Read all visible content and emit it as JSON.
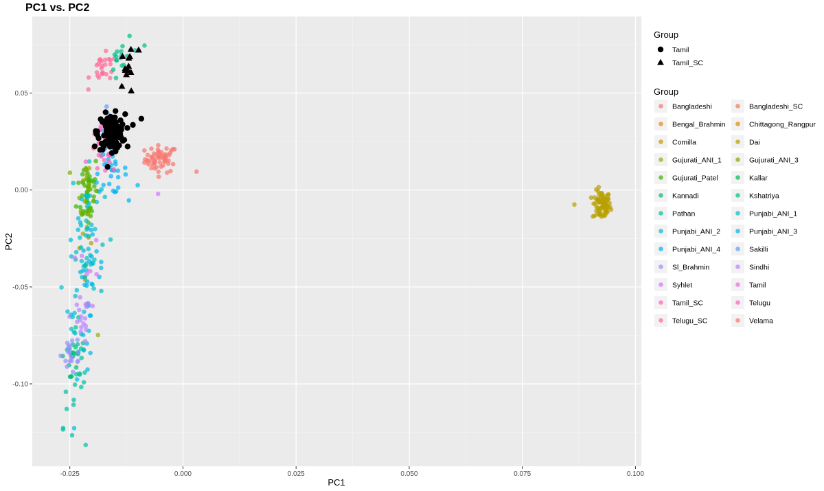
{
  "chart_data": {
    "type": "scatter",
    "title": "PC1 vs. PC2",
    "xlabel": "PC1",
    "ylabel": "PC2",
    "xlim": [
      -0.0333,
      0.1013
    ],
    "ylim": [
      -0.1425,
      0.0895
    ],
    "xticks": [
      -0.025,
      0,
      0.025,
      0.05,
      0.075,
      0.1
    ],
    "xtick_labels": [
      "-0.025",
      "0.000",
      "0.025",
      "0.050",
      "0.075",
      "0.100"
    ],
    "yticks": [
      -0.1,
      -0.05,
      0,
      0.05
    ],
    "ytick_labels": [
      "-0.10",
      "-0.05",
      "0.00",
      "0.05"
    ],
    "grid": true,
    "legend_position": "right",
    "shape_legend": {
      "title": "Group",
      "entries": [
        {
          "name": "Tamil",
          "shape": "circle",
          "color": "#000000"
        },
        {
          "name": "Tamil_SC",
          "shape": "triangle",
          "color": "#000000"
        }
      ]
    },
    "color_legend": {
      "title": "Group",
      "entries": [
        {
          "name": "Bangladeshi",
          "color": "#F8766D"
        },
        {
          "name": "Bangladeshi_SC",
          "color": "#F17D51"
        },
        {
          "name": "Bengal_Brahmin",
          "color": "#E7861B"
        },
        {
          "name": "Chittagong_Rangpur",
          "color": "#DB8E00"
        },
        {
          "name": "Comilla",
          "color": "#CF9400"
        },
        {
          "name": "Dai",
          "color": "#B8A000"
        },
        {
          "name": "Gujurati_ANI_1",
          "color": "#A5A500"
        },
        {
          "name": "Gujurati_ANI_3",
          "color": "#7CAE00"
        },
        {
          "name": "Gujurati_Patel",
          "color": "#39B600"
        },
        {
          "name": "Kallar",
          "color": "#00BB4E"
        },
        {
          "name": "Kannadi",
          "color": "#00BE70"
        },
        {
          "name": "Kshatriya",
          "color": "#00C08B"
        },
        {
          "name": "Pathan",
          "color": "#00C1A3"
        },
        {
          "name": "Punjabi_ANI_1",
          "color": "#00BFC4"
        },
        {
          "name": "Punjabi_ANI_2",
          "color": "#00BCD8"
        },
        {
          "name": "Punjabi_ANI_3",
          "color": "#00B7E8"
        },
        {
          "name": "Punjabi_ANI_4",
          "color": "#00B0F6"
        },
        {
          "name": "Sakilli",
          "color": "#619CFF"
        },
        {
          "name": "Sl_Brahmin",
          "color": "#9590FF"
        },
        {
          "name": "Sindhi",
          "color": "#B983FF"
        },
        {
          "name": "Syhlet",
          "color": "#D376FF"
        },
        {
          "name": "Tamil",
          "color": "#EE67E6"
        },
        {
          "name": "Tamil_SC",
          "color": "#FF61C3"
        },
        {
          "name": "Telugu",
          "color": "#FF62BC"
        },
        {
          "name": "Telugu_SC",
          "color": "#FF6A98"
        },
        {
          "name": "Velama",
          "color": "#F8766D"
        }
      ]
    },
    "clusters": [
      {
        "group": "Bangladeshi",
        "cx": -0.0048,
        "cy": 0.016,
        "sx": 0.0018,
        "sy": 0.0035,
        "n": 55
      },
      {
        "group": "Dai",
        "cx": 0.0925,
        "cy": -0.008,
        "sx": 0.001,
        "sy": 0.0038,
        "n": 75
      },
      {
        "group": "Gujurati_Patel",
        "cx": -0.021,
        "cy": 0.0,
        "sx": 0.0012,
        "sy": 0.01,
        "n": 45
      },
      {
        "group": "Gujurati_ANI_3",
        "cx": -0.0215,
        "cy": 0.002,
        "sx": 0.001,
        "sy": 0.006,
        "n": 15
      },
      {
        "group": "Gujurati_ANI_1",
        "cx": -0.0215,
        "cy": -0.035,
        "sx": 0.001,
        "sy": 0.02,
        "n": 12
      },
      {
        "group": "Punjabi_ANI_1",
        "cx": -0.021,
        "cy": -0.02,
        "sx": 0.0018,
        "sy": 0.02,
        "n": 35
      },
      {
        "group": "Punjabi_ANI_2",
        "cx": -0.0225,
        "cy": -0.055,
        "sx": 0.0015,
        "sy": 0.02,
        "n": 30
      },
      {
        "group": "Punjabi_ANI_3",
        "cx": -0.0205,
        "cy": -0.04,
        "sx": 0.0015,
        "sy": 0.02,
        "n": 25
      },
      {
        "group": "Punjabi_ANI_4",
        "cx": -0.016,
        "cy": 0.01,
        "sx": 0.0018,
        "sy": 0.006,
        "n": 30
      },
      {
        "group": "Pathan",
        "cx": -0.0235,
        "cy": -0.095,
        "sx": 0.0015,
        "sy": 0.015,
        "n": 25
      },
      {
        "group": "Kannadi",
        "cx": -0.0245,
        "cy": -0.085,
        "sx": 0.001,
        "sy": 0.01,
        "n": 12
      },
      {
        "group": "Sl_Brahmin",
        "cx": -0.0245,
        "cy": -0.085,
        "sx": 0.0012,
        "sy": 0.006,
        "n": 20
      },
      {
        "group": "Sindhi",
        "cx": -0.0225,
        "cy": -0.068,
        "sx": 0.001,
        "sy": 0.006,
        "n": 15
      },
      {
        "group": "Telugu",
        "cx": -0.0175,
        "cy": 0.02,
        "sx": 0.0015,
        "sy": 0.006,
        "n": 30
      },
      {
        "group": "Telugu_SC",
        "cx": -0.0175,
        "cy": 0.062,
        "sx": 0.0015,
        "sy": 0.004,
        "n": 25
      },
      {
        "group": "Kshatriya",
        "cx": -0.0135,
        "cy": 0.068,
        "sx": 0.0012,
        "sy": 0.006,
        "n": 15
      },
      {
        "group": "Syhlet",
        "cx": -0.0205,
        "cy": -0.045,
        "sx": 0.0012,
        "sy": 0.01,
        "n": 8
      },
      {
        "group": "Sakilli",
        "cx": -0.0165,
        "cy": 0.035,
        "sx": 0.0012,
        "sy": 0.008,
        "n": 10
      },
      {
        "group": "Tamil",
        "cx": -0.0158,
        "cy": 0.03,
        "sx": 0.0015,
        "sy": 0.0045,
        "n": 120,
        "highlight": "circle"
      },
      {
        "group": "Tamil_SC",
        "cx": -0.012,
        "cy": 0.062,
        "sx": 0.0008,
        "sy": 0.006,
        "n": 8,
        "highlight": "triangle"
      }
    ],
    "points": [
      {
        "group": "Tamil_SC",
        "x": -0.0115,
        "y": 0.0725,
        "highlight": "triangle"
      },
      {
        "group": "Tamil_SC",
        "x": -0.0098,
        "y": 0.0722,
        "highlight": "triangle"
      },
      {
        "group": "Tamil_SC",
        "x": -0.0128,
        "y": 0.0625,
        "highlight": "triangle"
      },
      {
        "group": "Tamil_SC",
        "x": -0.0125,
        "y": 0.0595,
        "highlight": "triangle"
      },
      {
        "group": "Tamil_SC",
        "x": -0.0135,
        "y": 0.0535,
        "highlight": "triangle"
      },
      {
        "group": "Tamil",
        "x": -0.0092,
        "y": 0.0368,
        "highlight": "circle"
      },
      {
        "group": "Tamil",
        "x": -0.0195,
        "y": 0.0225,
        "highlight": "circle"
      },
      {
        "group": "Bangladeshi",
        "x": 0.003,
        "y": 0.0095
      },
      {
        "group": "Dai",
        "x": 0.0865,
        "y": -0.0075
      },
      {
        "group": "Syhlet",
        "x": -0.0055,
        "y": -0.002
      },
      {
        "group": "Pathan",
        "x": -0.0265,
        "y": -0.1235
      },
      {
        "group": "Pathan",
        "x": -0.0245,
        "y": -0.1265
      },
      {
        "group": "Pathan",
        "x": -0.0215,
        "y": -0.1315
      },
      {
        "group": "Punjabi_ANI_3",
        "x": -0.01,
        "y": 0.0025
      },
      {
        "group": "Kshatriya",
        "x": -0.0118,
        "y": 0.0795
      },
      {
        "group": "Kshatriya",
        "x": -0.0085,
        "y": 0.0745
      }
    ]
  }
}
